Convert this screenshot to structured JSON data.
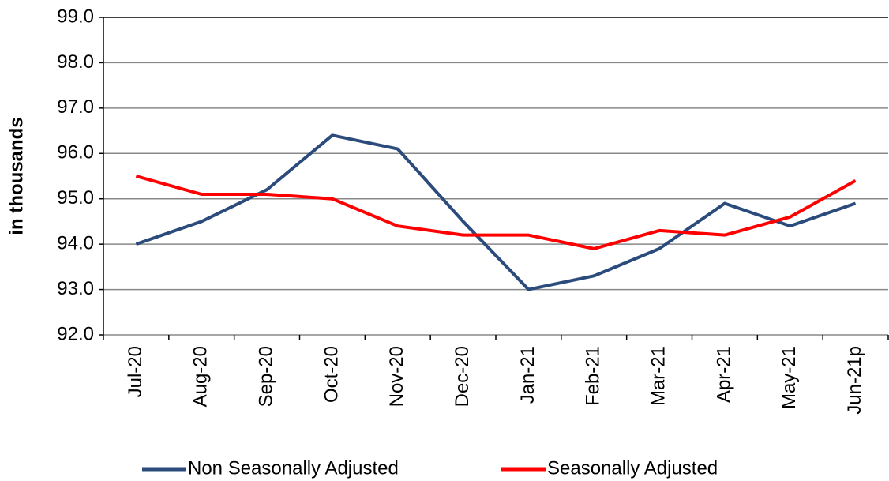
{
  "chart_data": {
    "type": "line",
    "y_label": "in thousands",
    "categories": [
      "Jul-20",
      "Aug-20",
      "Sep-20",
      "Oct-20",
      "Nov-20",
      "Dec-20",
      "Jan-21",
      "Feb-21",
      "Mar-21",
      "Apr-21",
      "May-21",
      "Jun-21p"
    ],
    "series": [
      {
        "name": "Non Seasonally Adjusted",
        "color": "#2a4b7c",
        "values": [
          94.0,
          94.5,
          95.2,
          96.4,
          96.1,
          94.5,
          93.0,
          93.3,
          93.9,
          94.9,
          94.4,
          94.9
        ]
      },
      {
        "name": "Seasonally Adjusted",
        "color": "#ff0000",
        "values": [
          95.5,
          95.1,
          95.1,
          95.0,
          94.4,
          94.2,
          94.2,
          93.9,
          94.3,
          94.2,
          94.6,
          95.4
        ]
      }
    ],
    "ylim": [
      92,
      99
    ],
    "yticks": [
      {
        "value": 92,
        "label": "92.0"
      },
      {
        "value": 93,
        "label": "93.0"
      },
      {
        "value": 94,
        "label": "94.0"
      },
      {
        "value": 95,
        "label": "95.0"
      },
      {
        "value": 96,
        "label": "96.0"
      },
      {
        "value": 97,
        "label": "97.0"
      },
      {
        "value": 98,
        "label": "98.0"
      },
      {
        "value": 99,
        "label": "99.0"
      }
    ],
    "grid": true,
    "legend": "bottom"
  }
}
